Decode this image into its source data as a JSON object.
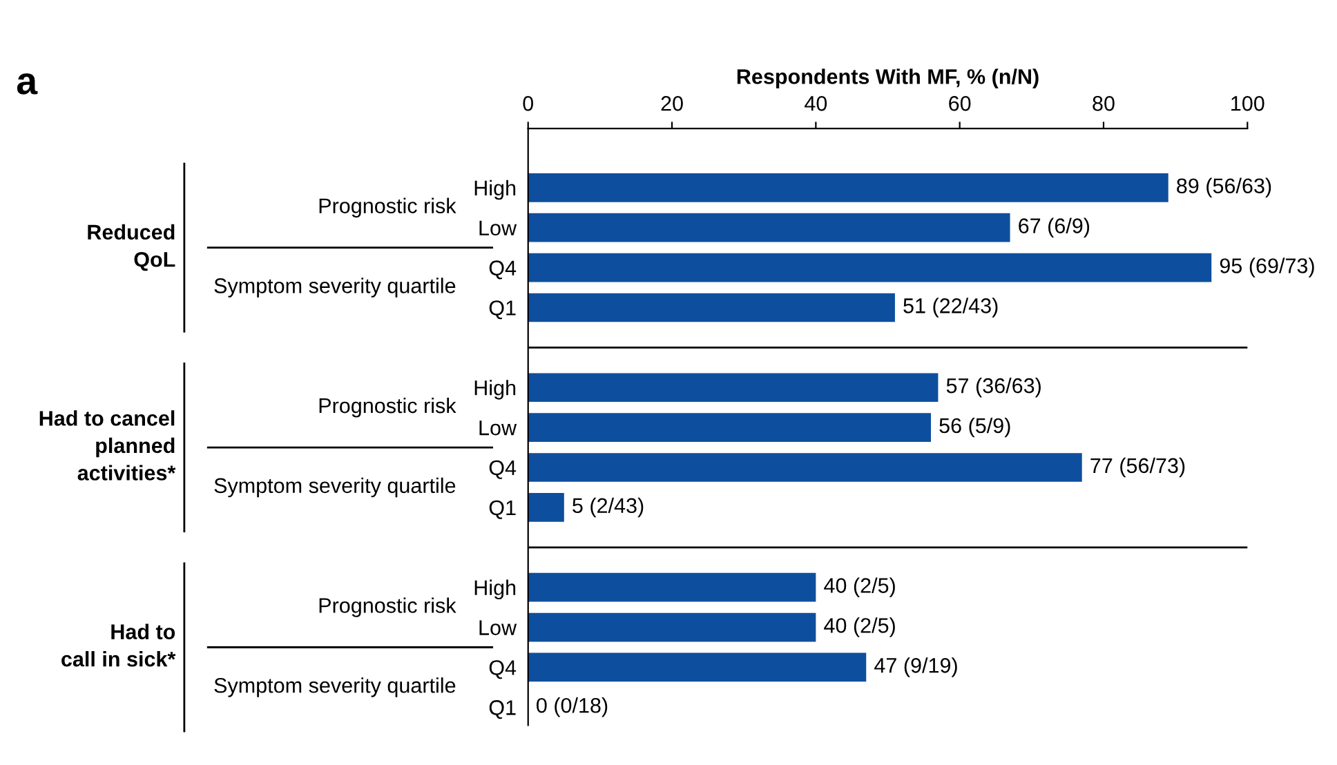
{
  "chart_data": {
    "type": "bar",
    "orientation": "horizontal",
    "xlabel": "Respondents With MF, % (n/N)",
    "xlim": [
      0,
      100
    ],
    "xticks": [
      0,
      20,
      40,
      60,
      80,
      100
    ],
    "color": "#0d4f9e",
    "categories": [
      "High",
      "Low",
      "Q4",
      "Q1",
      "High",
      "Low",
      "Q4",
      "Q1",
      "High",
      "Low",
      "Q4",
      "Q1"
    ],
    "values": [
      89,
      67,
      95,
      51,
      57,
      56,
      77,
      5,
      40,
      40,
      47,
      0
    ],
    "value_labels": [
      "89 (56/63)",
      "67 (6/9)",
      "95 (69/73)",
      "51 (22/43)",
      "57 (36/63)",
      "56 (5/9)",
      "77 (56/73)",
      "5 (2/43)",
      "40 (2/5)",
      "40 (2/5)",
      "47 (9/19)",
      "0 (0/18)"
    ],
    "annotations": [
      "a",
      "Reduced\nQoL",
      "Prognostic risk",
      "Symptom severity quartile",
      "Had to cancel\nplanned\nactivities*",
      "Prognostic risk",
      "Symptom severity quartile",
      "Had to\ncall in sick*",
      "Prognostic risk",
      "Symptom severity quartile"
    ],
    "grid": false,
    "legend": false
  }
}
